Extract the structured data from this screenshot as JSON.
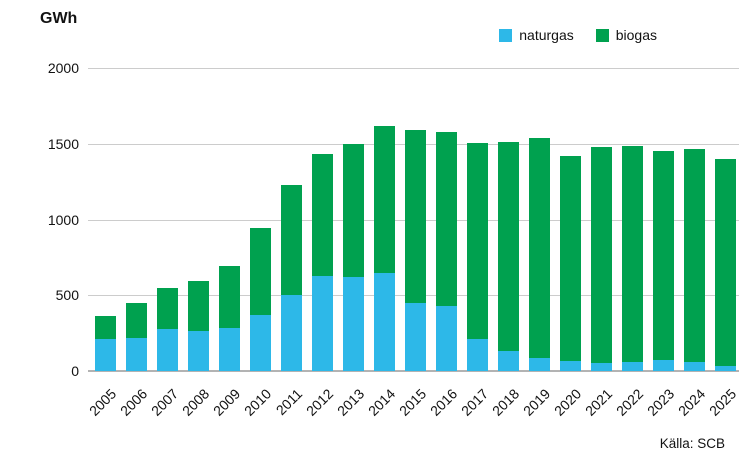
{
  "header": {
    "unit_label": "GWh"
  },
  "footer": {
    "source_label": "Källa: SCB"
  },
  "legend": {
    "items": [
      {
        "label": "naturgas",
        "color": "#2db8e8"
      },
      {
        "label": "biogas",
        "color": "#00a14f"
      }
    ]
  },
  "chart_data": {
    "type": "bar",
    "stacked": true,
    "title": "GWh",
    "categories": [
      "2005",
      "2006",
      "2007",
      "2008",
      "2009",
      "2010",
      "2011",
      "2012",
      "2013",
      "2014",
      "2015",
      "2016",
      "2017",
      "2018",
      "2019",
      "2020",
      "2021",
      "2022",
      "2023",
      "2024",
      "2025"
    ],
    "series": [
      {
        "name": "naturgas",
        "color": "#2db8e8",
        "values": [
          210,
          220,
          275,
          265,
          285,
          370,
          505,
          625,
          620,
          645,
          450,
          430,
          210,
          130,
          85,
          65,
          55,
          60,
          70,
          60,
          35
        ]
      },
      {
        "name": "biogas",
        "color": "#00a14f",
        "values": [
          155,
          230,
          275,
          330,
          410,
          575,
          720,
          810,
          880,
          975,
          1140,
          1150,
          1295,
          1385,
          1455,
          1355,
          1425,
          1425,
          1385,
          1405,
          1365
        ]
      }
    ],
    "totals": [
      365,
      450,
      550,
      595,
      695,
      945,
      1225,
      1435,
      1500,
      1620,
      1590,
      1580,
      1505,
      1515,
      1540,
      1420,
      1480,
      1485,
      1455,
      1465,
      1400
    ],
    "xlabel": "",
    "ylabel": "GWh",
    "ylim": [
      0,
      2000
    ],
    "yticks": [
      0,
      500,
      1000,
      1500,
      2000
    ],
    "grid": true,
    "legend_position": "top-right",
    "source": "Källa: SCB"
  }
}
